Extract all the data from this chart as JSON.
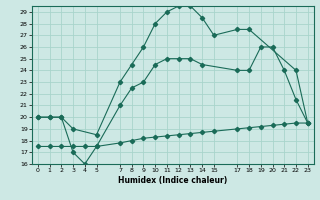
{
  "xlabel": "Humidex (Indice chaleur)",
  "bg_color": "#cde8e4",
  "grid_color": "#a8d4cc",
  "line_color": "#1a6b58",
  "xlim": [
    -0.5,
    23.5
  ],
  "ylim": [
    16,
    29.5
  ],
  "xticks": [
    0,
    1,
    2,
    3,
    4,
    5,
    7,
    8,
    9,
    10,
    11,
    12,
    13,
    14,
    15,
    17,
    18,
    19,
    20,
    21,
    22,
    23
  ],
  "yticks": [
    16,
    17,
    18,
    19,
    20,
    21,
    22,
    23,
    24,
    25,
    26,
    27,
    28,
    29
  ],
  "line1_x": [
    0,
    1,
    2,
    3,
    5,
    7,
    8,
    9,
    10,
    11,
    12,
    13,
    14,
    15,
    17,
    18,
    22,
    23
  ],
  "line1_y": [
    20,
    20,
    20,
    19,
    18.5,
    23,
    24.5,
    26,
    28,
    29,
    29.5,
    29.5,
    28.5,
    27,
    27.5,
    27.5,
    24,
    19.5
  ],
  "line2_x": [
    0,
    1,
    2,
    3,
    4,
    5,
    7,
    8,
    9,
    10,
    11,
    12,
    13,
    14,
    17,
    18,
    19,
    20,
    21,
    22,
    23
  ],
  "line2_y": [
    20,
    20,
    20,
    17,
    16,
    17.5,
    21,
    22.5,
    23,
    24.5,
    25,
    25,
    25,
    24.5,
    24,
    24,
    26,
    26,
    24,
    21.5,
    19.5
  ],
  "line3_x": [
    0,
    1,
    2,
    3,
    4,
    5,
    7,
    8,
    9,
    10,
    11,
    12,
    13,
    14,
    15,
    17,
    18,
    19,
    20,
    21,
    22,
    23
  ],
  "line3_y": [
    17.5,
    17.5,
    17.5,
    17.5,
    17.5,
    17.5,
    17.8,
    18.0,
    18.2,
    18.3,
    18.4,
    18.5,
    18.6,
    18.7,
    18.8,
    19.0,
    19.1,
    19.2,
    19.3,
    19.4,
    19.5,
    19.5
  ]
}
